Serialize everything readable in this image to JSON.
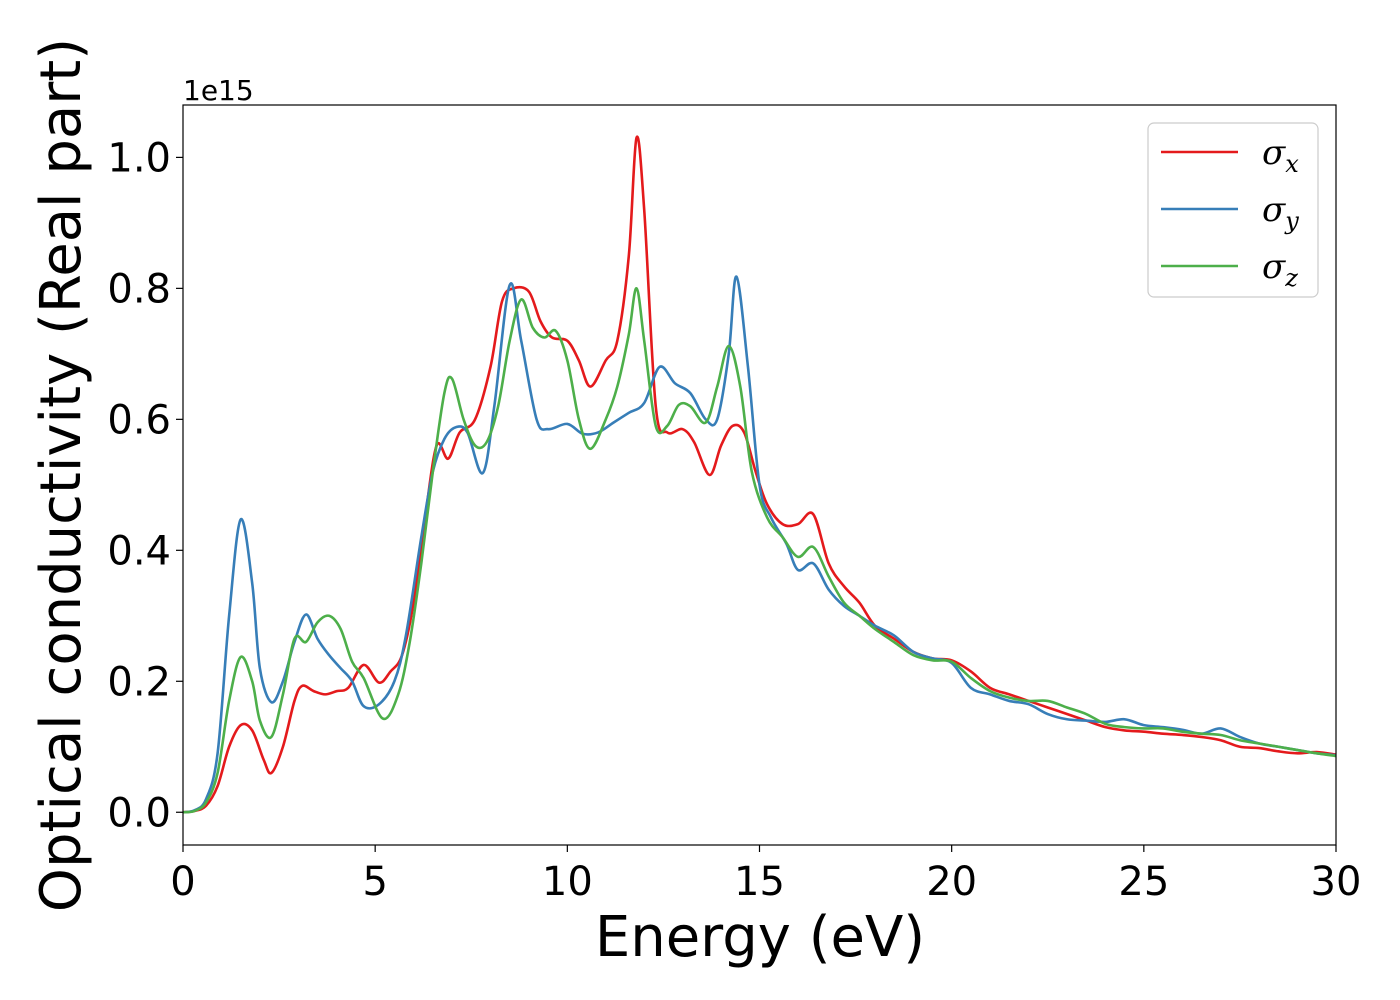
{
  "chart_data": {
    "type": "line",
    "xlabel": "Energy (eV)",
    "ylabel": "Optical conductivity (Real part)",
    "y_offset_text": "1e15",
    "xlim": [
      0,
      30
    ],
    "ylim": [
      -0.05,
      1.08
    ],
    "x_ticks": [
      0,
      5,
      10,
      15,
      20,
      25,
      30
    ],
    "x_tick_labels": [
      "0",
      "5",
      "10",
      "15",
      "20",
      "25",
      "30"
    ],
    "y_ticks": [
      0.0,
      0.2,
      0.4,
      0.6,
      0.8,
      1.0
    ],
    "y_tick_labels": [
      "0.0",
      "0.2",
      "0.4",
      "0.6",
      "0.8",
      "1.0"
    ],
    "grid": false,
    "legend_position": "top-right",
    "series": [
      {
        "name": "σ",
        "subscript": "x",
        "color": "#e41a1c",
        "points": [
          [
            0,
            0
          ],
          [
            0.3,
            0.002
          ],
          [
            0.6,
            0.01
          ],
          [
            0.9,
            0.04
          ],
          [
            1.2,
            0.1
          ],
          [
            1.5,
            0.133
          ],
          [
            1.8,
            0.125
          ],
          [
            2.1,
            0.08
          ],
          [
            2.3,
            0.06
          ],
          [
            2.6,
            0.1
          ],
          [
            2.9,
            0.17
          ],
          [
            3.1,
            0.193
          ],
          [
            3.4,
            0.185
          ],
          [
            3.7,
            0.18
          ],
          [
            4.0,
            0.185
          ],
          [
            4.3,
            0.19
          ],
          [
            4.7,
            0.225
          ],
          [
            5.1,
            0.198
          ],
          [
            5.4,
            0.215
          ],
          [
            5.7,
            0.24
          ],
          [
            6.0,
            0.32
          ],
          [
            6.3,
            0.45
          ],
          [
            6.6,
            0.56
          ],
          [
            6.9,
            0.54
          ],
          [
            7.2,
            0.58
          ],
          [
            7.6,
            0.6
          ],
          [
            8.0,
            0.68
          ],
          [
            8.3,
            0.78
          ],
          [
            8.6,
            0.8
          ],
          [
            9.0,
            0.795
          ],
          [
            9.3,
            0.75
          ],
          [
            9.6,
            0.725
          ],
          [
            10.0,
            0.72
          ],
          [
            10.3,
            0.69
          ],
          [
            10.6,
            0.65
          ],
          [
            11.0,
            0.69
          ],
          [
            11.3,
            0.72
          ],
          [
            11.6,
            0.85
          ],
          [
            11.8,
            1.03
          ],
          [
            12.0,
            0.92
          ],
          [
            12.3,
            0.62
          ],
          [
            12.6,
            0.58
          ],
          [
            13.0,
            0.585
          ],
          [
            13.3,
            0.565
          ],
          [
            13.7,
            0.515
          ],
          [
            14.0,
            0.56
          ],
          [
            14.3,
            0.59
          ],
          [
            14.6,
            0.58
          ],
          [
            14.9,
            0.52
          ],
          [
            15.2,
            0.47
          ],
          [
            15.6,
            0.44
          ],
          [
            16.0,
            0.44
          ],
          [
            16.4,
            0.455
          ],
          [
            16.8,
            0.38
          ],
          [
            17.2,
            0.345
          ],
          [
            17.6,
            0.32
          ],
          [
            18.0,
            0.285
          ],
          [
            18.5,
            0.265
          ],
          [
            19.0,
            0.245
          ],
          [
            19.5,
            0.235
          ],
          [
            20.0,
            0.232
          ],
          [
            20.5,
            0.215
          ],
          [
            21.0,
            0.19
          ],
          [
            21.5,
            0.18
          ],
          [
            22.0,
            0.17
          ],
          [
            22.5,
            0.16
          ],
          [
            23.0,
            0.15
          ],
          [
            23.5,
            0.14
          ],
          [
            24.0,
            0.13
          ],
          [
            24.5,
            0.125
          ],
          [
            25.0,
            0.123
          ],
          [
            25.5,
            0.12
          ],
          [
            26.0,
            0.118
          ],
          [
            26.5,
            0.115
          ],
          [
            27.0,
            0.11
          ],
          [
            27.5,
            0.1
          ],
          [
            28.0,
            0.098
          ],
          [
            28.5,
            0.093
          ],
          [
            29.0,
            0.09
          ],
          [
            29.5,
            0.092
          ],
          [
            30.0,
            0.088
          ]
        ]
      },
      {
        "name": "σ",
        "subscript": "y",
        "color": "#377eb8",
        "points": [
          [
            0,
            0
          ],
          [
            0.3,
            0.003
          ],
          [
            0.6,
            0.02
          ],
          [
            0.9,
            0.09
          ],
          [
            1.2,
            0.3
          ],
          [
            1.5,
            0.447
          ],
          [
            1.8,
            0.35
          ],
          [
            2.0,
            0.22
          ],
          [
            2.3,
            0.168
          ],
          [
            2.6,
            0.2
          ],
          [
            2.9,
            0.26
          ],
          [
            3.2,
            0.302
          ],
          [
            3.5,
            0.265
          ],
          [
            3.8,
            0.24
          ],
          [
            4.1,
            0.22
          ],
          [
            4.4,
            0.2
          ],
          [
            4.7,
            0.162
          ],
          [
            5.1,
            0.165
          ],
          [
            5.5,
            0.2
          ],
          [
            5.8,
            0.27
          ],
          [
            6.2,
            0.42
          ],
          [
            6.5,
            0.52
          ],
          [
            6.8,
            0.57
          ],
          [
            7.1,
            0.588
          ],
          [
            7.4,
            0.58
          ],
          [
            7.8,
            0.518
          ],
          [
            8.1,
            0.62
          ],
          [
            8.5,
            0.805
          ],
          [
            8.8,
            0.72
          ],
          [
            9.2,
            0.6
          ],
          [
            9.5,
            0.585
          ],
          [
            10.0,
            0.593
          ],
          [
            10.4,
            0.578
          ],
          [
            10.8,
            0.58
          ],
          [
            11.2,
            0.595
          ],
          [
            11.6,
            0.61
          ],
          [
            12.0,
            0.625
          ],
          [
            12.4,
            0.68
          ],
          [
            12.8,
            0.655
          ],
          [
            13.2,
            0.64
          ],
          [
            13.6,
            0.6
          ],
          [
            13.9,
            0.6
          ],
          [
            14.2,
            0.7
          ],
          [
            14.4,
            0.818
          ],
          [
            14.7,
            0.68
          ],
          [
            15.0,
            0.5
          ],
          [
            15.3,
            0.45
          ],
          [
            15.7,
            0.41
          ],
          [
            16.0,
            0.37
          ],
          [
            16.4,
            0.38
          ],
          [
            16.8,
            0.34
          ],
          [
            17.2,
            0.315
          ],
          [
            17.6,
            0.3
          ],
          [
            18.0,
            0.285
          ],
          [
            18.5,
            0.27
          ],
          [
            19.0,
            0.245
          ],
          [
            19.5,
            0.235
          ],
          [
            20.0,
            0.228
          ],
          [
            20.5,
            0.19
          ],
          [
            21.0,
            0.18
          ],
          [
            21.5,
            0.17
          ],
          [
            22.0,
            0.165
          ],
          [
            22.5,
            0.15
          ],
          [
            23.0,
            0.142
          ],
          [
            23.5,
            0.14
          ],
          [
            24.0,
            0.138
          ],
          [
            24.5,
            0.142
          ],
          [
            25.0,
            0.133
          ],
          [
            25.5,
            0.13
          ],
          [
            26.0,
            0.126
          ],
          [
            26.5,
            0.12
          ],
          [
            27.0,
            0.128
          ],
          [
            27.5,
            0.115
          ],
          [
            28.0,
            0.105
          ],
          [
            28.5,
            0.1
          ],
          [
            29.0,
            0.095
          ],
          [
            29.5,
            0.09
          ],
          [
            30.0,
            0.087
          ]
        ]
      },
      {
        "name": "σ",
        "subscript": "z",
        "color": "#4daf4a",
        "points": [
          [
            0,
            0
          ],
          [
            0.3,
            0.002
          ],
          [
            0.6,
            0.015
          ],
          [
            0.9,
            0.06
          ],
          [
            1.2,
            0.17
          ],
          [
            1.5,
            0.237
          ],
          [
            1.8,
            0.2
          ],
          [
            2.0,
            0.14
          ],
          [
            2.3,
            0.115
          ],
          [
            2.6,
            0.18
          ],
          [
            2.9,
            0.265
          ],
          [
            3.2,
            0.26
          ],
          [
            3.5,
            0.29
          ],
          [
            3.8,
            0.3
          ],
          [
            4.1,
            0.28
          ],
          [
            4.4,
            0.23
          ],
          [
            4.7,
            0.205
          ],
          [
            5.2,
            0.143
          ],
          [
            5.6,
            0.18
          ],
          [
            5.9,
            0.26
          ],
          [
            6.2,
            0.38
          ],
          [
            6.5,
            0.52
          ],
          [
            6.8,
            0.64
          ],
          [
            7.0,
            0.662
          ],
          [
            7.3,
            0.6
          ],
          [
            7.6,
            0.56
          ],
          [
            7.9,
            0.565
          ],
          [
            8.2,
            0.62
          ],
          [
            8.5,
            0.72
          ],
          [
            8.8,
            0.783
          ],
          [
            9.1,
            0.74
          ],
          [
            9.4,
            0.725
          ],
          [
            9.7,
            0.735
          ],
          [
            10.0,
            0.69
          ],
          [
            10.3,
            0.6
          ],
          [
            10.6,
            0.555
          ],
          [
            11.0,
            0.6
          ],
          [
            11.3,
            0.65
          ],
          [
            11.6,
            0.73
          ],
          [
            11.8,
            0.8
          ],
          [
            12.0,
            0.72
          ],
          [
            12.3,
            0.59
          ],
          [
            12.6,
            0.59
          ],
          [
            12.9,
            0.622
          ],
          [
            13.2,
            0.62
          ],
          [
            13.6,
            0.595
          ],
          [
            13.9,
            0.65
          ],
          [
            14.2,
            0.712
          ],
          [
            14.5,
            0.65
          ],
          [
            14.8,
            0.52
          ],
          [
            15.2,
            0.45
          ],
          [
            15.6,
            0.42
          ],
          [
            16.0,
            0.39
          ],
          [
            16.4,
            0.405
          ],
          [
            16.8,
            0.36
          ],
          [
            17.2,
            0.32
          ],
          [
            17.6,
            0.3
          ],
          [
            18.0,
            0.28
          ],
          [
            18.5,
            0.26
          ],
          [
            19.0,
            0.24
          ],
          [
            19.5,
            0.232
          ],
          [
            20.0,
            0.23
          ],
          [
            20.5,
            0.205
          ],
          [
            21.0,
            0.185
          ],
          [
            21.5,
            0.175
          ],
          [
            22.0,
            0.17
          ],
          [
            22.5,
            0.17
          ],
          [
            23.0,
            0.16
          ],
          [
            23.5,
            0.15
          ],
          [
            24.0,
            0.135
          ],
          [
            24.5,
            0.13
          ],
          [
            25.0,
            0.128
          ],
          [
            25.5,
            0.128
          ],
          [
            26.0,
            0.123
          ],
          [
            26.5,
            0.12
          ],
          [
            27.0,
            0.118
          ],
          [
            27.5,
            0.11
          ],
          [
            28.0,
            0.105
          ],
          [
            28.5,
            0.1
          ],
          [
            29.0,
            0.095
          ],
          [
            29.5,
            0.09
          ],
          [
            30.0,
            0.086
          ]
        ]
      }
    ]
  }
}
